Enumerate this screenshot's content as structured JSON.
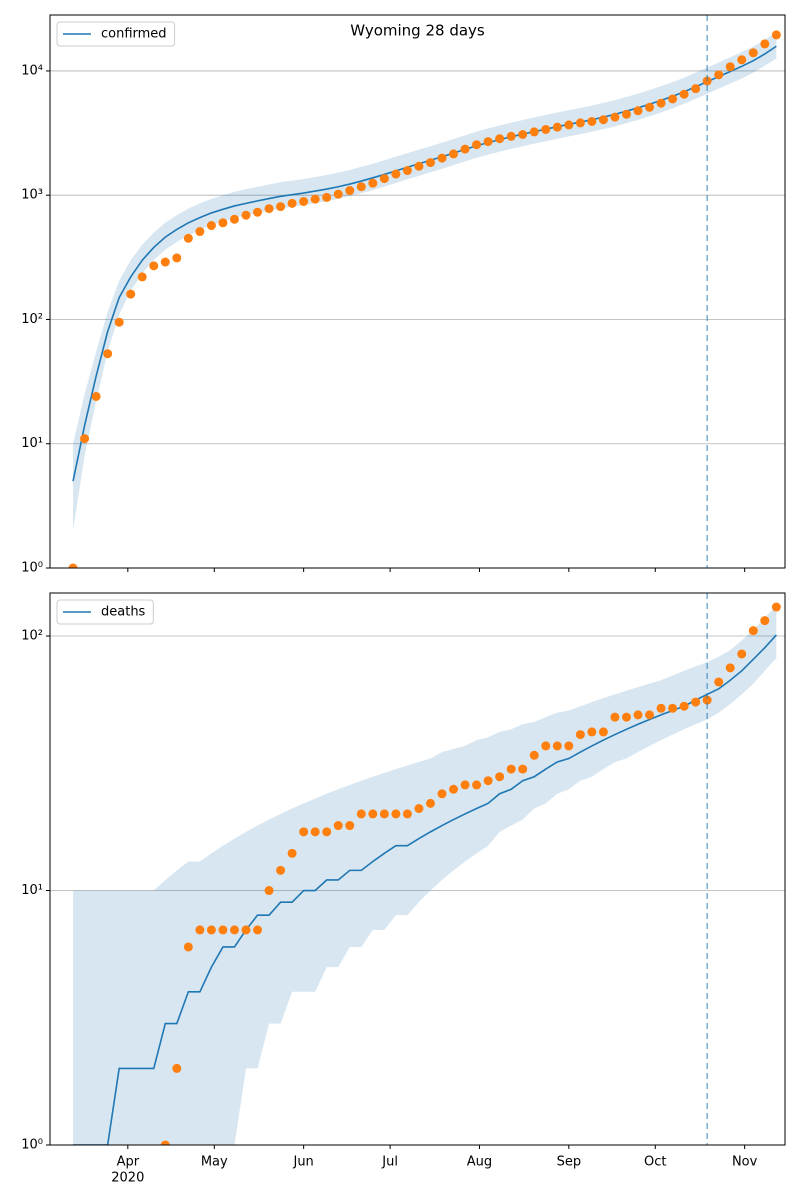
{
  "chart_data": [
    {
      "type": "scatter",
      "title": "Wyoming 28 days",
      "log_y": true,
      "grid": true,
      "legend": "upper left",
      "shared_x_labels": false,
      "x": [
        "2020-03-13",
        "2020-03-17",
        "2020-03-21",
        "2020-03-25",
        "2020-03-29",
        "2020-04-02",
        "2020-04-06",
        "2020-04-10",
        "2020-04-14",
        "2020-04-18",
        "2020-04-22",
        "2020-04-26",
        "2020-04-30",
        "2020-05-04",
        "2020-05-08",
        "2020-05-12",
        "2020-05-16",
        "2020-05-20",
        "2020-05-24",
        "2020-05-28",
        "2020-06-01",
        "2020-06-05",
        "2020-06-09",
        "2020-06-13",
        "2020-06-17",
        "2020-06-21",
        "2020-06-25",
        "2020-06-29",
        "2020-07-03",
        "2020-07-07",
        "2020-07-11",
        "2020-07-15",
        "2020-07-19",
        "2020-07-23",
        "2020-07-27",
        "2020-07-31",
        "2020-08-04",
        "2020-08-08",
        "2020-08-12",
        "2020-08-16",
        "2020-08-20",
        "2020-08-24",
        "2020-08-28",
        "2020-09-01",
        "2020-09-05",
        "2020-09-09",
        "2020-09-13",
        "2020-09-17",
        "2020-09-21",
        "2020-09-25",
        "2020-09-29",
        "2020-10-03",
        "2020-10-07",
        "2020-10-11",
        "2020-10-15",
        "2020-10-19",
        "2020-10-23",
        "2020-10-27",
        "2020-10-31",
        "2020-11-04",
        "2020-11-08",
        "2020-11-12"
      ],
      "xlim": [
        "2020-03-05",
        "2020-11-15"
      ],
      "xticks": [
        {
          "value": "2020-04-01",
          "label": "Apr"
        },
        {
          "value": "2020-05-01",
          "label": "May"
        },
        {
          "value": "2020-06-01",
          "label": "Jun"
        },
        {
          "value": "2020-07-01",
          "label": "Jul"
        },
        {
          "value": "2020-08-01",
          "label": "Aug"
        },
        {
          "value": "2020-09-01",
          "label": "Sep"
        },
        {
          "value": "2020-10-01",
          "label": "Oct"
        },
        {
          "value": "2020-11-01",
          "label": "Nov"
        }
      ],
      "ylim": [
        1,
        28200
      ],
      "yticks": [
        {
          "value": 1,
          "label": "10⁰"
        },
        {
          "value": 10,
          "label": "10¹"
        },
        {
          "value": 100,
          "label": "10²"
        },
        {
          "value": 1000,
          "label": "10³"
        },
        {
          "value": 10000,
          "label": "10⁴"
        }
      ],
      "vline": "2020-10-19",
      "series": [
        {
          "name": "confirmed",
          "color": "#1f77b4",
          "style": "line",
          "values": [
            5,
            14,
            35,
            80,
            150,
            220,
            300,
            380,
            460,
            530,
            600,
            660,
            720,
            770,
            820,
            860,
            900,
            940,
            980,
            1010,
            1040,
            1080,
            1120,
            1170,
            1230,
            1300,
            1380,
            1470,
            1570,
            1680,
            1790,
            1910,
            2040,
            2180,
            2340,
            2500,
            2650,
            2800,
            2950,
            3100,
            3250,
            3400,
            3560,
            3720,
            3880,
            4050,
            4250,
            4480,
            4750,
            5050,
            5400,
            5800,
            6250,
            6800,
            7450,
            8200,
            9000,
            9900,
            10900,
            12100,
            13700,
            15800
          ],
          "lower": [
            2,
            8,
            22,
            55,
            110,
            170,
            235,
            300,
            365,
            420,
            475,
            525,
            575,
            615,
            655,
            690,
            720,
            750,
            780,
            810,
            830,
            865,
            895,
            935,
            985,
            1040,
            1100,
            1175,
            1255,
            1345,
            1430,
            1530,
            1630,
            1745,
            1870,
            2000,
            2120,
            2240,
            2360,
            2480,
            2600,
            2720,
            2850,
            2975,
            3100,
            3240,
            3400,
            3580,
            3800,
            4040,
            4320,
            4640,
            5000,
            5440,
            5960,
            6560,
            7200,
            7900,
            8700,
            9700,
            11000,
            12600
          ],
          "upper": [
            10,
            25,
            55,
            115,
            205,
            300,
            400,
            500,
            600,
            690,
            780,
            860,
            935,
            1000,
            1065,
            1120,
            1170,
            1220,
            1275,
            1310,
            1350,
            1400,
            1455,
            1520,
            1600,
            1690,
            1790,
            1910,
            2040,
            2180,
            2330,
            2480,
            2650,
            2830,
            3040,
            3250,
            3450,
            3640,
            3840,
            4030,
            4230,
            4420,
            4630,
            4840,
            5040,
            5270,
            5530,
            5820,
            6180,
            6570,
            7020,
            7540,
            8130,
            8840,
            9690,
            10660,
            11700,
            12900,
            14200,
            15700,
            17800,
            20500
          ]
        },
        {
          "color": "#ff7f0e",
          "style": "points",
          "values": [
            1,
            11,
            24,
            53,
            95,
            160,
            220,
            270,
            290,
            313,
            450,
            510,
            570,
            600,
            640,
            690,
            730,
            780,
            810,
            860,
            890,
            930,
            960,
            1020,
            1090,
            1170,
            1250,
            1360,
            1480,
            1580,
            1710,
            1830,
            1990,
            2150,
            2350,
            2550,
            2700,
            2850,
            2980,
            3080,
            3230,
            3380,
            3530,
            3680,
            3820,
            3920,
            4050,
            4250,
            4480,
            4780,
            5100,
            5500,
            5950,
            6500,
            7200,
            8300,
            9300,
            10800,
            12300,
            14000,
            16500,
            19500
          ]
        }
      ]
    },
    {
      "type": "scatter",
      "log_y": true,
      "grid": true,
      "legend": "upper left",
      "year_label": "2020",
      "x": [
        "2020-03-13",
        "2020-03-17",
        "2020-03-21",
        "2020-03-25",
        "2020-03-29",
        "2020-04-02",
        "2020-04-06",
        "2020-04-10",
        "2020-04-14",
        "2020-04-18",
        "2020-04-22",
        "2020-04-26",
        "2020-04-30",
        "2020-05-04",
        "2020-05-08",
        "2020-05-12",
        "2020-05-16",
        "2020-05-20",
        "2020-05-24",
        "2020-05-28",
        "2020-06-01",
        "2020-06-05",
        "2020-06-09",
        "2020-06-13",
        "2020-06-17",
        "2020-06-21",
        "2020-06-25",
        "2020-06-29",
        "2020-07-03",
        "2020-07-07",
        "2020-07-11",
        "2020-07-15",
        "2020-07-19",
        "2020-07-23",
        "2020-07-27",
        "2020-07-31",
        "2020-08-04",
        "2020-08-08",
        "2020-08-12",
        "2020-08-16",
        "2020-08-20",
        "2020-08-24",
        "2020-08-28",
        "2020-09-01",
        "2020-09-05",
        "2020-09-09",
        "2020-09-13",
        "2020-09-17",
        "2020-09-21",
        "2020-09-25",
        "2020-09-29",
        "2020-10-03",
        "2020-10-07",
        "2020-10-11",
        "2020-10-15",
        "2020-10-19",
        "2020-10-23",
        "2020-10-27",
        "2020-10-31",
        "2020-11-04",
        "2020-11-08",
        "2020-11-12"
      ],
      "xlim": [
        "2020-03-05",
        "2020-11-15"
      ],
      "xticks": [
        {
          "value": "2020-04-01",
          "label": "Apr"
        },
        {
          "value": "2020-05-01",
          "label": "May"
        },
        {
          "value": "2020-06-01",
          "label": "Jun"
        },
        {
          "value": "2020-07-01",
          "label": "Jul"
        },
        {
          "value": "2020-08-01",
          "label": "Aug"
        },
        {
          "value": "2020-09-01",
          "label": "Sep"
        },
        {
          "value": "2020-10-01",
          "label": "Oct"
        },
        {
          "value": "2020-11-01",
          "label": "Nov"
        }
      ],
      "ylim": [
        1,
        147.6
      ],
      "yticks": [
        {
          "value": 1,
          "label": "10⁰"
        },
        {
          "value": 10,
          "label": "10¹"
        },
        {
          "value": 100,
          "label": "10²"
        }
      ],
      "vline": "2020-10-19",
      "series": [
        {
          "name": "deaths",
          "color": "#1f77b4",
          "style": "line",
          "values": [
            1,
            1,
            1,
            1,
            2,
            2,
            2,
            2,
            3,
            3,
            4,
            4,
            5,
            6,
            6,
            7,
            8,
            8,
            9,
            9,
            10,
            10,
            11,
            11,
            12,
            12,
            13,
            14,
            15,
            15,
            16,
            17,
            18,
            19,
            20,
            21,
            22,
            24,
            25,
            27,
            28,
            30,
            32,
            33,
            35,
            37,
            39,
            41,
            43,
            45,
            47,
            49,
            51,
            53,
            56,
            59,
            62,
            67,
            73,
            81,
            90,
            101
          ],
          "lower": [
            1,
            1,
            1,
            1,
            1,
            1,
            1,
            1,
            1,
            1,
            1,
            1,
            1,
            1,
            1,
            2,
            2,
            3,
            3,
            4,
            4,
            4,
            5,
            5,
            6,
            6,
            7,
            7,
            8,
            8,
            9,
            10,
            11,
            12,
            13,
            14,
            15,
            17,
            18,
            19,
            21,
            22,
            24,
            25,
            27,
            28,
            30,
            32,
            33,
            35,
            37,
            39,
            41,
            43,
            45,
            47,
            50,
            54,
            59,
            65,
            73,
            82
          ],
          "upper": [
            10,
            10,
            10,
            10,
            10,
            10,
            10,
            10,
            11,
            12,
            13,
            13,
            14,
            15,
            16,
            17,
            18,
            19,
            20,
            21,
            22,
            23,
            24,
            25,
            26,
            27,
            28,
            29,
            30,
            31,
            32,
            33,
            35,
            36,
            37,
            39,
            40,
            42,
            43,
            45,
            46,
            48,
            50,
            51,
            53,
            55,
            57,
            59,
            61,
            63,
            65,
            67,
            70,
            73,
            76,
            79,
            83,
            88,
            96,
            106,
            118,
            132
          ]
        },
        {
          "color": "#ff7f0e",
          "style": "points",
          "values": [
            null,
            null,
            null,
            null,
            null,
            null,
            null,
            null,
            1,
            2,
            6,
            7,
            7,
            7,
            7,
            7,
            7,
            10,
            12,
            14,
            17,
            17,
            17,
            18,
            18,
            20,
            20,
            20,
            20,
            20,
            21,
            22,
            24,
            25,
            26,
            26,
            27,
            28,
            30,
            30,
            34,
            37,
            37,
            37,
            41,
            42,
            42,
            48,
            48,
            49,
            49,
            52,
            52,
            53,
            55,
            56,
            66,
            75,
            85,
            105,
            115,
            130
          ]
        }
      ]
    }
  ]
}
